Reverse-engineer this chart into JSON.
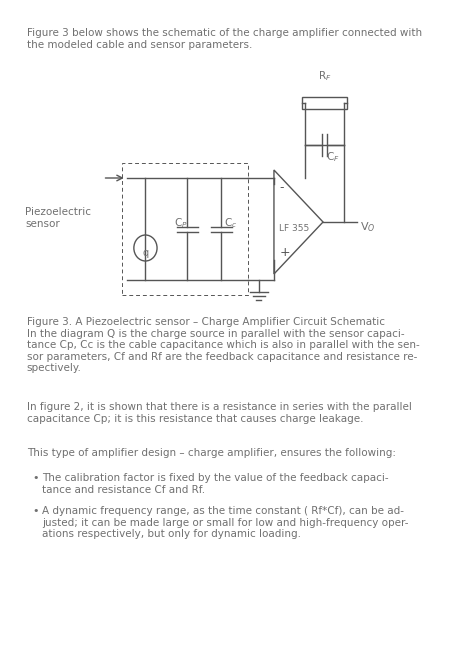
{
  "bg_color": "#ffffff",
  "text_color": "#707070",
  "line_color": "#555555",
  "intro_text": "Figure 3 below shows the schematic of the charge amplifier connected with\nthe modeled cable and sensor parameters.",
  "fig3_caption": "Figure 3. A Piezoelectric sensor – Charge Amplifier Circuit Schematic\nIn the diagram Q is the charge source in parallel with the sensor capaci-\ntance Cp, Cc is the cable capacitance which is also in parallel with the sen-\nsor parameters, Cf and Rf are the feedback capacitance and resistance re-\nspectively.",
  "para2": "In figure 2, it is shown that there is a resistance in series with the parallel\ncapacitance Cp; it is this resistance that causes charge leakage.",
  "para3": "This type of amplifier design – charge amplifier, ensures the following:",
  "bullet1": "The calibration factor is fixed by the value of the feedback capaci-\ntance and resistance Cf and Rf.",
  "bullet2": "A dynamic frequency range, as the time constant ( Rf*Cf), can be ad-\njusted; it can be made large or small for low and high-frequency oper-\nations respectively, but only for dynamic loading.",
  "label_piezo": "Piezoelectric\nsensor",
  "label_lf355": "LF 355",
  "label_vo": "V$_O$",
  "label_rf": "R$_F$",
  "label_cf": "C$_F$",
  "label_cp": "C$_P$",
  "label_cc": "C$_c$",
  "label_q": "q"
}
